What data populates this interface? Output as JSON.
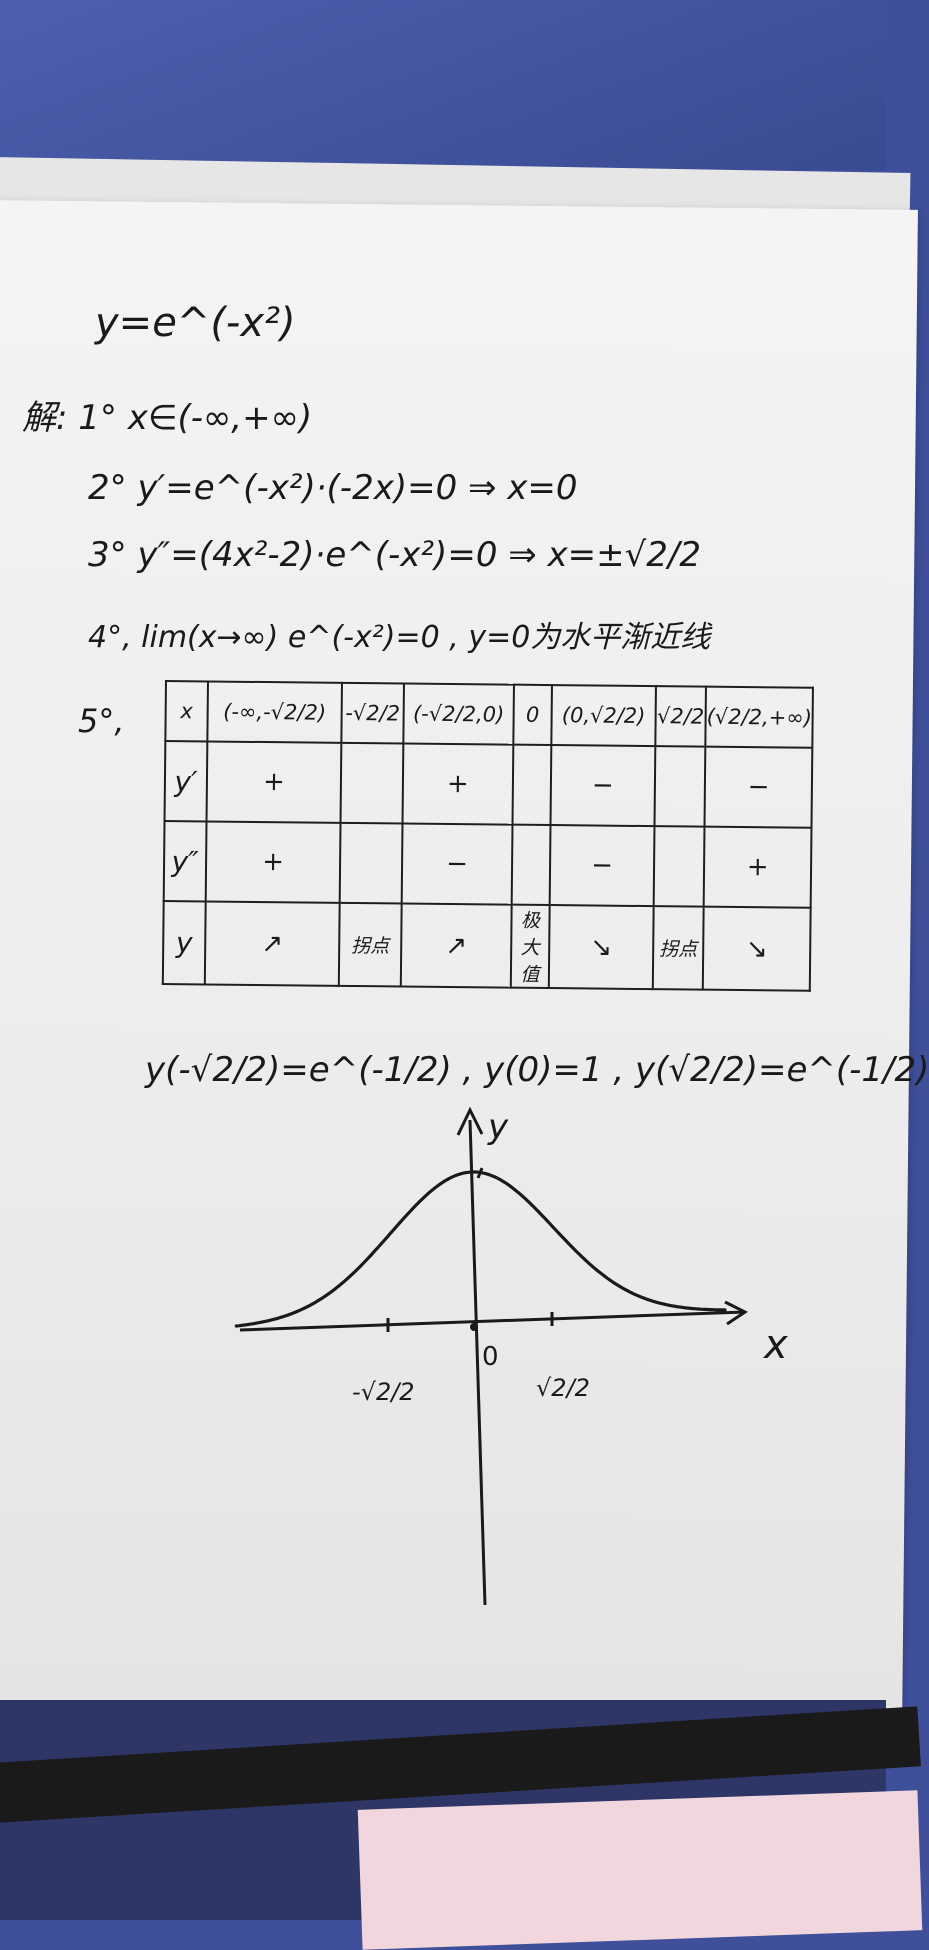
{
  "problem": {
    "function": "y=e^(-x²)",
    "step1": "解: 1° x∈(-∞,+∞)",
    "step2": "2° y′=e^(-x²)·(-2x)=0 ⇒ x=0",
    "step3": "3° y″=(4x²-2)·e^(-x²)=0 ⇒ x=±√2/2",
    "step4": "4°, lim(x→∞) e^(-x²)=0 , y=0为水平渐近线",
    "step5_label": "5°,"
  },
  "table": {
    "header": [
      "x",
      "(-∞,-√2/2)",
      "-√2/2",
      "(-√2/2,0)",
      "0",
      "(0,√2/2)",
      "√2/2",
      "(√2/2,+∞)"
    ],
    "rows": [
      {
        "label": "y′",
        "cells": [
          "+",
          "",
          "+",
          "",
          "−",
          "",
          "−"
        ]
      },
      {
        "label": "y″",
        "cells": [
          "+",
          "",
          "−",
          "",
          "−",
          "",
          "+"
        ]
      },
      {
        "label": "y",
        "cells": [
          "↗",
          "拐点",
          "↗",
          "极大值",
          "↘",
          "拐点",
          "↘"
        ]
      }
    ]
  },
  "values_line": "y(-√2/2)=e^(-1/2) , y(0)=1 , y(√2/2)=e^(-1/2)",
  "graph": {
    "x_axis_label": "x",
    "y_axis_label": "y",
    "origin_label": "0",
    "tick_left_label": "-√2/2",
    "tick_right_label": "√2/2"
  }
}
